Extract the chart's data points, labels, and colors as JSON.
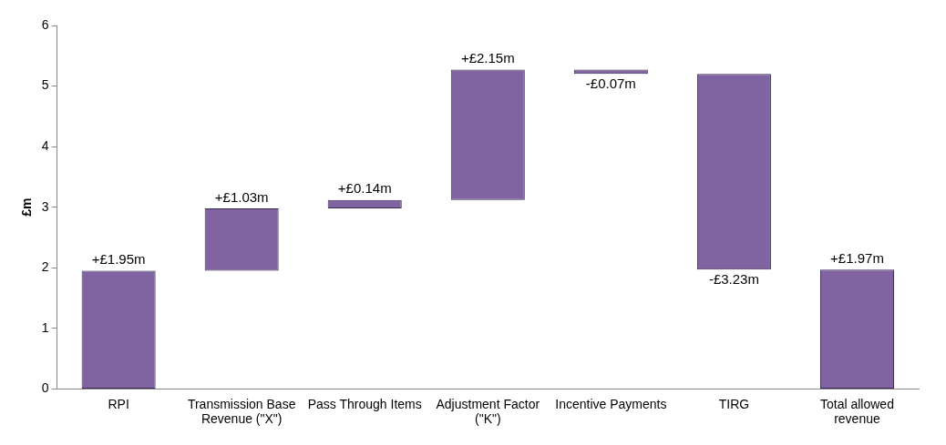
{
  "chart_data": {
    "type": "bar",
    "ylabel": "£m",
    "categories": [
      "RPI",
      "Transmission Base Revenue (\"X\")",
      "Pass Through Items",
      "Adjustment Factor (\"K\")",
      "Incentive Payments",
      "TIRG",
      "Total allowed revenue"
    ],
    "values": [
      1.95,
      1.03,
      0.14,
      2.15,
      -0.07,
      -3.23,
      1.97
    ],
    "base": [
      0,
      1.95,
      2.98,
      3.12,
      5.27,
      5.2,
      0
    ],
    "value_labels": [
      "+£1.95m",
      "+£1.03m",
      "+£0.14m",
      "+£2.15m",
      "-£0.07m",
      "-£3.23m",
      "+£1.97m"
    ],
    "color": "#8064a2",
    "ylim": [
      0,
      6
    ],
    "yticks": [
      0,
      1,
      2,
      3,
      4,
      5,
      6
    ],
    "grid": false,
    "legend": false
  }
}
